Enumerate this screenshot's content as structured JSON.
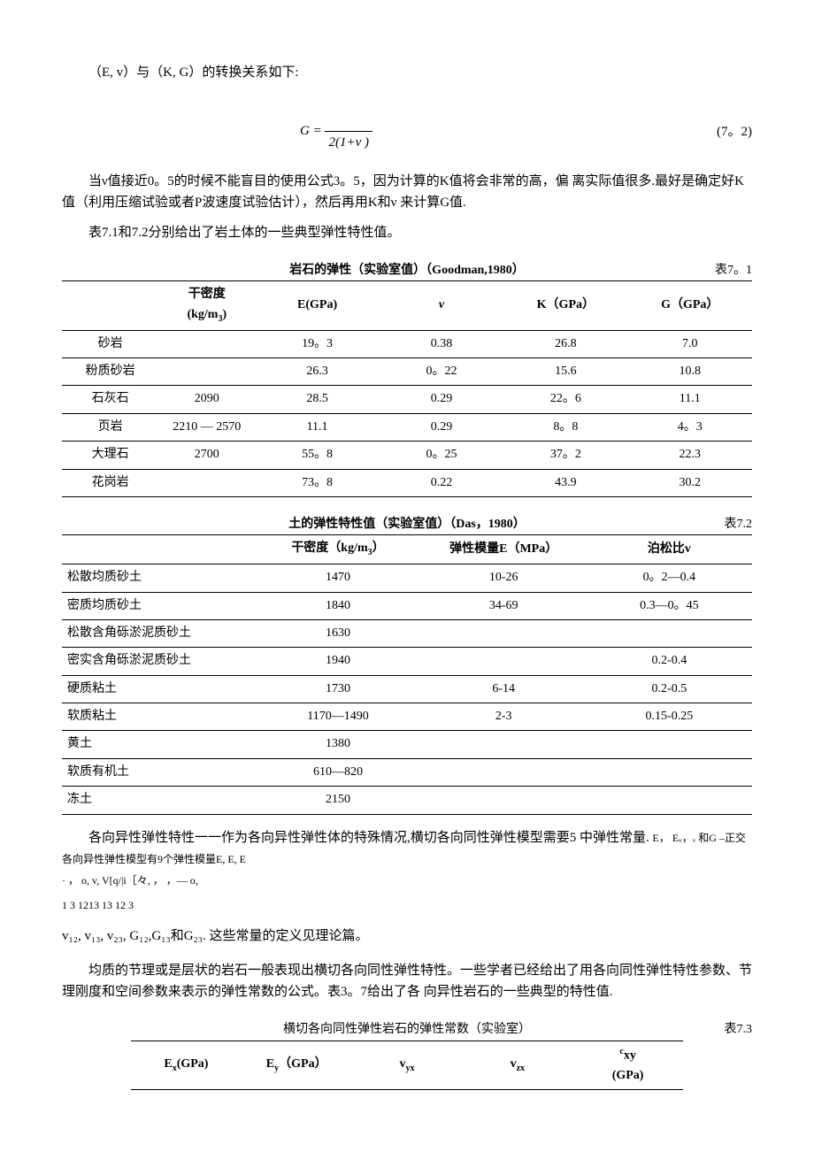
{
  "intro_line": "（E, v）与（K, G）的转换关系如下:",
  "formula": {
    "lhs": "G",
    "eq": "=",
    "den": "2(1+v )",
    "num_label": "(7。2)"
  },
  "para_nu_warning": "当ν值接近0。5的时候不能盲目的使用公式3。5，因为计算的K值将会非常的高，偏 离实际值很多.最好是确定好K值（利用压缩试验或者P波速度试验估计），然后再用K和ν 来计算G值.",
  "para_tables_intro": "表7.1和7.2分别给出了岩土体的一些典型弹性特性值。",
  "table1": {
    "title": "岩石的弹性（实验室值）（Goodman,1980）",
    "label": "表7。1",
    "headers": [
      "",
      "干密度\n(kg/m3)",
      "E(GPa)",
      "ν",
      "K（GPa）",
      "G（GPa）"
    ],
    "rows": [
      [
        "砂岩",
        "",
        "19。3",
        "0.38",
        "26.8",
        "7.0"
      ],
      [
        "粉质砂岩",
        "",
        "26.3",
        "0。22",
        "15.6",
        "10.8"
      ],
      [
        "石灰石",
        "2090",
        "28.5",
        "0.29",
        "22。6",
        "11.1"
      ],
      [
        "页岩",
        "2210 — 2570",
        "11.1",
        "0.29",
        "8。8",
        "4。3"
      ],
      [
        "大理石",
        "2700",
        "55。8",
        "0。25",
        "37。2",
        "22.3"
      ],
      [
        "花岗岩",
        "",
        "73。8",
        "0.22",
        "43.9",
        "30.2"
      ]
    ]
  },
  "table2": {
    "title": "土的弹性特性值（实验室值）（Das，1980）",
    "label": "表7.2",
    "headers": [
      "",
      "干密度（kg/m3）",
      "弹性模量E（MPa）",
      "泊松比v"
    ],
    "rows": [
      [
        "松散均质砂土",
        "1470",
        "10-26",
        "0。2—0.4"
      ],
      [
        "密质均质砂土",
        "1840",
        "34-69",
        "0.3—0。45"
      ],
      [
        "松散含角砾淤泥质砂土",
        "1630",
        "",
        ""
      ],
      [
        "密实含角砾淤泥质砂土",
        "1940",
        "",
        "0.2-0.4"
      ],
      [
        "硬质粘土",
        "1730",
        "6-14",
        "0.2-0.5"
      ],
      [
        "软质粘土",
        "1170—1490",
        "2-3",
        "0.15-0.25"
      ],
      [
        "黄土",
        "1380",
        "",
        ""
      ],
      [
        "软质有机土",
        "610—820",
        "",
        ""
      ],
      [
        "冻土",
        "2150",
        "",
        ""
      ]
    ]
  },
  "aniso_para1_a": "各向异性弹性特性一一作为各向异性弹性体的特殊情况,横切各向同性弹性模型需要5  中弹性常量.",
  "aniso_consts_line": "E，     Eᵥ，ᵥ 和G  –正交各向异性弹性模型有9个弹性模量E,        E,   E",
  "aniso_sub_line": "·   ，  o, v,    V[q/|i［々,                                        ，  ，— o,",
  "aniso_sub_indices": "           1        3       1213             13                                                   12         3",
  "aniso_para1_b": "v₁₂, v₁₃, v₂₃, G₁₂,G₁₃和G₂₃. 这些常量的定义见理论篇。",
  "para_homog": "均质的节理或是层状的岩石一般表现出横切各向同性弹性特性。一些学者已经给出了用各向同性弹性特性参数、节理刚度和空间参数来表示的弹性常数的公式。表3。7给出了各 向异性岩石的一些典型的特性值.",
  "table3": {
    "title": "横切各向同性弹性岩石的弹性常数（实验室）",
    "label": "表7.3",
    "headers": [
      "Eₓ(GPa)",
      "Eᵧ（GPa）",
      "vᵧₓ",
      "v₂ₓ",
      "ᶜxy\n(GPa)"
    ]
  }
}
